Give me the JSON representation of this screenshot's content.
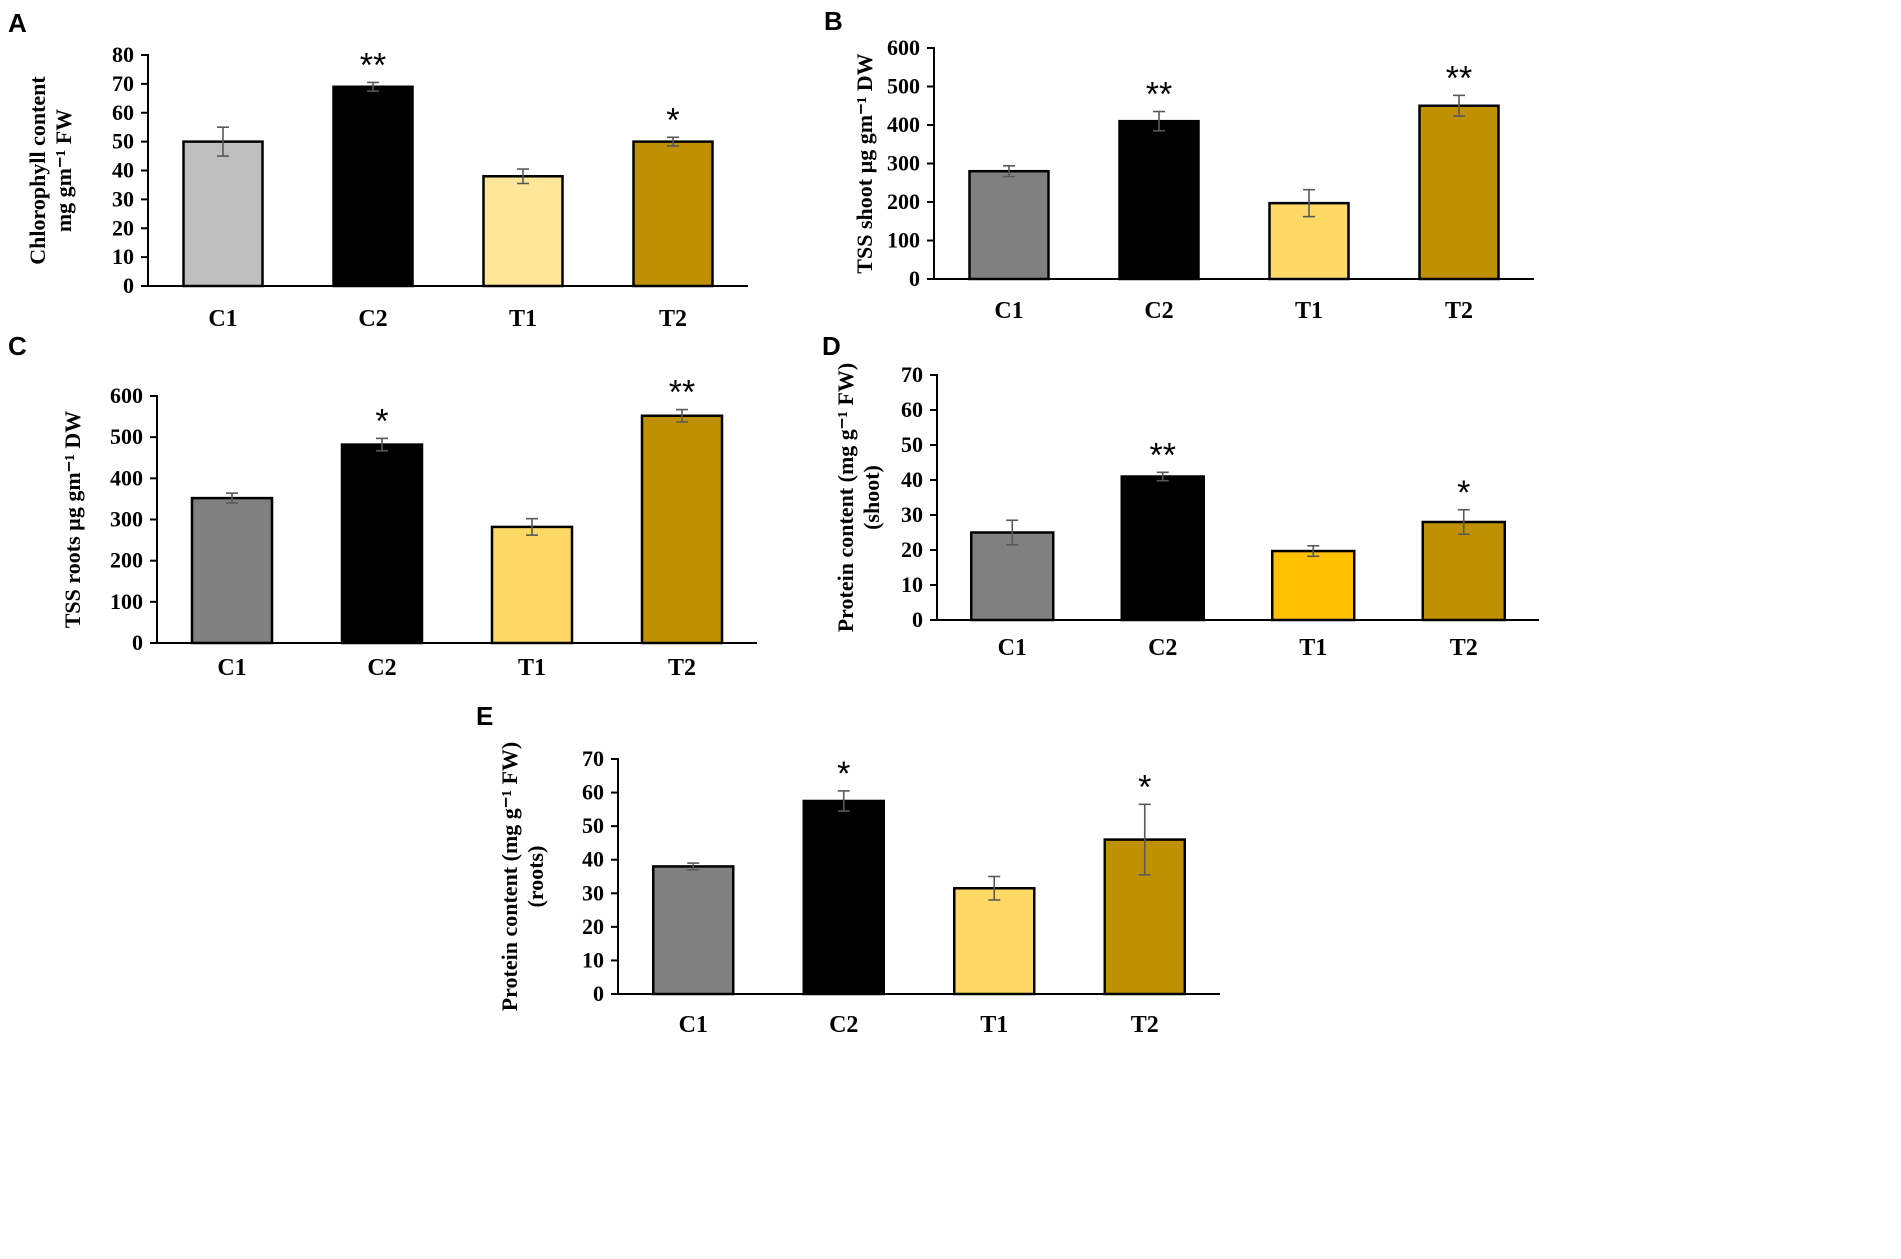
{
  "colors": {
    "gray": "#808080",
    "lightgray": "#bfbfbf",
    "black": "#000000",
    "paleyellow": "#ffe699",
    "yellow": "#ffd966",
    "amber": "#ffc000",
    "gold": "#bf9000",
    "errorbar": "#595959"
  },
  "chart_data": [
    {
      "panel": "A",
      "type": "bar",
      "categories": [
        "C1",
        "C2",
        "T1",
        "T2"
      ],
      "values": [
        50,
        69,
        38,
        50
      ],
      "errors": [
        5,
        1.5,
        2.5,
        1.5
      ],
      "significance": [
        "",
        "**",
        "",
        "*"
      ],
      "bar_colors": [
        "lightgray",
        "black",
        "paleyellow",
        "gold"
      ],
      "ylim": [
        0,
        80
      ],
      "yticks": [
        0,
        10,
        20,
        30,
        40,
        50,
        60,
        70,
        80
      ],
      "ylabel_lines": [
        "Chlorophyll content",
        "mg gm⁻¹ FW"
      ]
    },
    {
      "panel": "B",
      "type": "bar",
      "categories": [
        "C1",
        "C2",
        "T1",
        "T2"
      ],
      "values": [
        280,
        410,
        197,
        450
      ],
      "errors": [
        14,
        25,
        35,
        27
      ],
      "significance": [
        "",
        "**",
        "",
        "**"
      ],
      "bar_colors": [
        "gray",
        "black",
        "yellow",
        "gold"
      ],
      "ylim": [
        0,
        600
      ],
      "yticks": [
        0,
        100,
        200,
        300,
        400,
        500,
        600
      ],
      "ylabel_lines": [
        "TSS shoot µg gm⁻¹ DW"
      ]
    },
    {
      "panel": "C",
      "type": "bar",
      "categories": [
        "C1",
        "C2",
        "T1",
        "T2"
      ],
      "values": [
        352,
        482,
        282,
        552
      ],
      "errors": [
        12,
        15,
        20,
        15
      ],
      "significance": [
        "",
        "*",
        "",
        "**"
      ],
      "bar_colors": [
        "gray",
        "black",
        "yellow",
        "gold"
      ],
      "ylim": [
        0,
        600
      ],
      "yticks": [
        0,
        100,
        200,
        300,
        400,
        500,
        600
      ],
      "ylabel_lines": [
        "TSS roots µg gm⁻¹ DW"
      ]
    },
    {
      "panel": "D",
      "type": "bar",
      "categories": [
        "C1",
        "C2",
        "T1",
        "T2"
      ],
      "values": [
        25,
        41,
        19.7,
        28
      ],
      "errors": [
        3.5,
        1.2,
        1.5,
        3.5
      ],
      "significance": [
        "",
        "**",
        "",
        "*"
      ],
      "bar_colors": [
        "gray",
        "black",
        "amber",
        "gold"
      ],
      "ylim": [
        0,
        70
      ],
      "yticks": [
        0,
        10,
        20,
        30,
        40,
        50,
        60,
        70
      ],
      "ylabel_lines": [
        "Protein content (mg g⁻¹ FW)",
        "(shoot)"
      ]
    },
    {
      "panel": "E",
      "type": "bar",
      "categories": [
        "C1",
        "C2",
        "T1",
        "T2"
      ],
      "values": [
        38,
        57.5,
        31.5,
        46
      ],
      "errors": [
        1,
        3,
        3.5,
        10.5
      ],
      "significance": [
        "",
        "*",
        "",
        "*"
      ],
      "bar_colors": [
        "gray",
        "black",
        "yellow",
        "gold"
      ],
      "ylim": [
        0,
        70
      ],
      "yticks": [
        0,
        10,
        20,
        30,
        40,
        50,
        60,
        70
      ],
      "ylabel_lines": [
        "Protein content (mg g⁻¹ FW)",
        "(roots)"
      ]
    }
  ]
}
